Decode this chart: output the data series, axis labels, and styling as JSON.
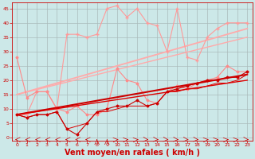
{
  "bg_color": "#cce8e8",
  "grid_color": "#aabbbb",
  "xlabel": "Vent moyen/en rafales ( km/h )",
  "xlabel_color": "#cc0000",
  "xlabel_fontsize": 7,
  "tick_color": "#cc0000",
  "xlim": [
    -0.5,
    23.5
  ],
  "ylim": [
    -1,
    47
  ],
  "yticks": [
    0,
    5,
    10,
    15,
    20,
    25,
    30,
    35,
    40,
    45
  ],
  "xticks": [
    0,
    1,
    2,
    3,
    4,
    5,
    6,
    7,
    8,
    9,
    10,
    11,
    12,
    13,
    14,
    15,
    16,
    17,
    18,
    19,
    20,
    21,
    22,
    23
  ],
  "series": [
    {
      "x": [
        0,
        1,
        2,
        3,
        4,
        5,
        6,
        7,
        8,
        9,
        10,
        11,
        12,
        13,
        14,
        15,
        16,
        17,
        18,
        19,
        20,
        21,
        22,
        23
      ],
      "y": [
        8,
        8,
        16,
        16,
        10,
        36,
        36,
        35,
        36,
        45,
        46,
        42,
        45,
        40,
        39,
        30,
        45,
        28,
        27,
        35,
        38,
        40,
        40,
        40
      ],
      "color": "#ff9999",
      "lw": 0.8,
      "marker": "+",
      "ms": 3,
      "zorder": 3
    },
    {
      "x": [
        0,
        23
      ],
      "y": [
        15,
        38
      ],
      "color": "#ffaaaa",
      "lw": 1.3,
      "marker": null,
      "ms": 0,
      "zorder": 2
    },
    {
      "x": [
        0,
        1,
        2,
        3,
        4,
        5,
        6,
        7,
        8,
        9,
        10,
        11,
        12,
        13,
        14,
        15,
        16,
        17,
        18,
        19,
        20,
        21,
        22,
        23
      ],
      "y": [
        28,
        14,
        16,
        16,
        10,
        9,
        11,
        8,
        8,
        10,
        24,
        20,
        19,
        13,
        12,
        16,
        18,
        17,
        19,
        20,
        21,
        25,
        23,
        23
      ],
      "color": "#ff8888",
      "lw": 0.8,
      "marker": "D",
      "ms": 1.5,
      "zorder": 3
    },
    {
      "x": [
        0,
        23
      ],
      "y": [
        15,
        35
      ],
      "color": "#ffaaaa",
      "lw": 1.0,
      "marker": null,
      "ms": 0,
      "zorder": 2
    },
    {
      "x": [
        0,
        1,
        2,
        3,
        4,
        5,
        6,
        7,
        8,
        9,
        10,
        11,
        12,
        13,
        14,
        15,
        16,
        17,
        18,
        19,
        20,
        21,
        22,
        23
      ],
      "y": [
        8,
        7,
        8,
        8,
        9,
        3,
        1,
        5,
        9,
        10,
        11,
        11,
        13,
        11,
        12,
        16,
        17,
        18,
        19,
        20,
        20,
        21,
        21,
        23
      ],
      "color": "#cc0000",
      "lw": 0.8,
      "marker": "D",
      "ms": 1.5,
      "zorder": 4
    },
    {
      "x": [
        0,
        23
      ],
      "y": [
        8,
        22
      ],
      "color": "#cc0000",
      "lw": 1.5,
      "marker": null,
      "ms": 0,
      "zorder": 3
    },
    {
      "x": [
        0,
        23
      ],
      "y": [
        8,
        20
      ],
      "color": "#dd0000",
      "lw": 1.0,
      "marker": null,
      "ms": 0,
      "zorder": 3
    },
    {
      "x": [
        0,
        1,
        2,
        3,
        4,
        5,
        6,
        7,
        8,
        9,
        10,
        11,
        12,
        13,
        14,
        15,
        16,
        17,
        18,
        19,
        20,
        21,
        22,
        23
      ],
      "y": [
        8,
        7,
        8,
        8,
        9,
        3,
        4,
        5,
        9,
        9,
        10,
        11,
        11,
        11,
        12,
        16,
        16,
        17,
        17,
        18,
        19,
        19,
        20,
        22
      ],
      "color": "#dd0000",
      "lw": 0.7,
      "marker": null,
      "ms": 0,
      "zorder": 3
    }
  ]
}
